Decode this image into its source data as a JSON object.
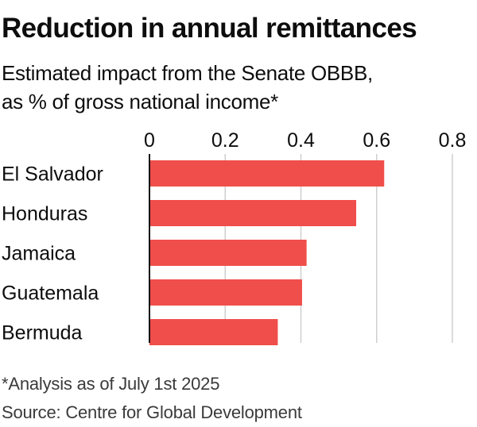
{
  "title": "Reduction in annual remittances",
  "subtitle_lines": [
    "Estimated impact from the Senate OBBB,",
    "as % of gross national income*"
  ],
  "footnote": "*Analysis as of July 1st 2025",
  "source": "Source: Centre for Global Development",
  "colors": {
    "bar": "#f04e4a",
    "grid": "#cfcfcf",
    "axis": "#111111",
    "text": "#0d0d0d"
  },
  "chart_data": {
    "type": "bar",
    "orientation": "horizontal",
    "categories": [
      "El Salvador",
      "Honduras",
      "Jamaica",
      "Guatemala",
      "Bermuda"
    ],
    "values": [
      0.62,
      0.546,
      0.415,
      0.403,
      0.339
    ],
    "xlim": [
      0,
      0.8
    ],
    "xticks": [
      "0",
      "0.2",
      "0.4",
      "0.6",
      "0.8"
    ],
    "tick_values": [
      0,
      0.2,
      0.4,
      0.6,
      0.8
    ],
    "grid": true,
    "xaxis_position": "top"
  }
}
